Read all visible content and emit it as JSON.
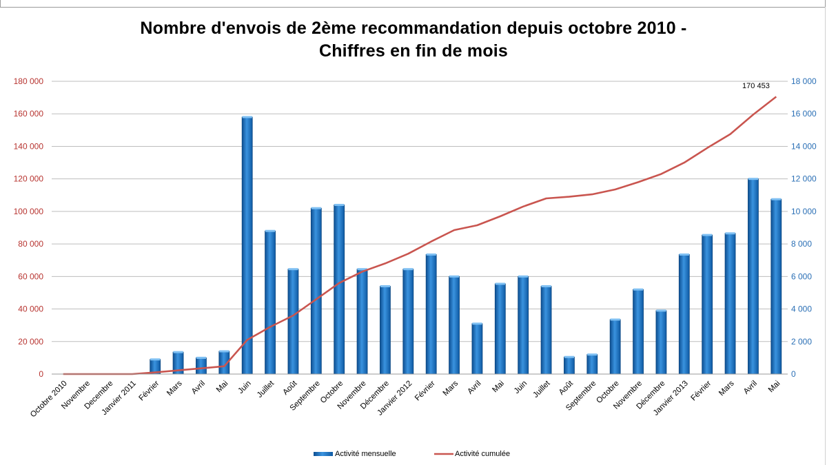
{
  "chart_data": {
    "type": "bar",
    "title": "Nombre d'envois de 2ème recommandation depuis octobre 2010 -",
    "subtitle": "Chiffres en fin de mois",
    "categories": [
      "Octobre 2010",
      "Novembre",
      "Decembre",
      "Janvier 2011",
      "Février",
      "Mars",
      "Avril",
      "Mai",
      "Juin",
      "Juillet",
      "Août",
      "Septembre",
      "Octobre",
      "Novembre",
      "Décembre",
      "Janvier 2012",
      "Février",
      "Mars",
      "Avril",
      "Mai",
      "Juin",
      "Juillet",
      "Août",
      "Septembre",
      "Octobre",
      "Novembre",
      "Décembre",
      "Janvier 2013",
      "Février",
      "Mars",
      "Avril",
      "Mai"
    ],
    "series": [
      {
        "name": "Activité mensuelle",
        "axis": "left",
        "type": "bar",
        "color": "#1b74c4",
        "values": [
          0,
          0,
          0,
          0,
          9000,
          13500,
          10000,
          14000,
          158000,
          88000,
          64500,
          102000,
          104000,
          64500,
          54000,
          64500,
          73500,
          60000,
          31000,
          55500,
          60000,
          54000,
          10500,
          12000,
          33500,
          52000,
          39000,
          73500,
          85500,
          86500,
          120000,
          107500
        ]
      },
      {
        "name": "Activité cumulée",
        "axis": "right",
        "type": "line",
        "color": "#c9554f",
        "values": [
          0,
          0,
          0,
          0,
          100,
          230,
          350,
          480,
          2100,
          2900,
          3600,
          4600,
          5600,
          6300,
          6800,
          7400,
          8150,
          8850,
          9150,
          9700,
          10300,
          10800,
          10900,
          11050,
          11350,
          11800,
          12300,
          13000,
          13900,
          14750,
          15950,
          17050
        ]
      }
    ],
    "yaxis_left": {
      "min": 0,
      "max": 180000,
      "step": 20000,
      "tick_labels": [
        "0",
        "20 000",
        "40 000",
        "60 000",
        "80 000",
        "100 000",
        "120 000",
        "140 000",
        "160 000",
        "180 000"
      ],
      "color": "#b7332f"
    },
    "yaxis_right": {
      "min": 0,
      "max": 18000,
      "step": 2000,
      "tick_labels": [
        "0",
        "2 000",
        "4 000",
        "6 000",
        "8 000",
        "10 000",
        "12 000",
        "14 000",
        "16 000",
        "18 000"
      ],
      "color": "#2a6fb5"
    },
    "annotation": {
      "text": "170 453",
      "category_index": 30
    },
    "grid": true,
    "legend": "bottom"
  }
}
